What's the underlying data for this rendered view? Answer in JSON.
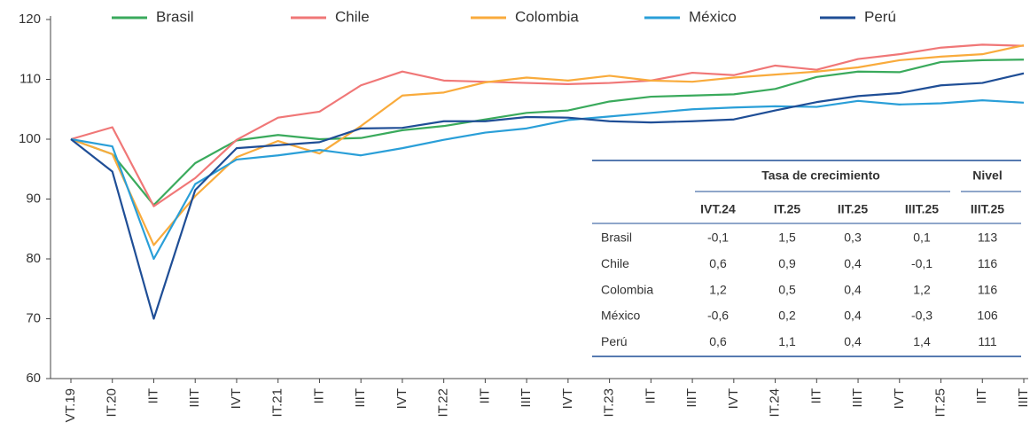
{
  "chart_data": {
    "type": "line",
    "categories": [
      "VT.19",
      "IT.20",
      "IIT",
      "IIIT",
      "IVT",
      "IT.21",
      "IIT",
      "IIIT",
      "IVT",
      "IT.22",
      "IIT",
      "IIIT",
      "IVT",
      "IT.23",
      "IIT",
      "IIIT",
      "IVT",
      "IT.24",
      "IIT",
      "IIIT",
      "IVT",
      "IT.25",
      "IIT",
      "IIIT"
    ],
    "series": [
      {
        "name": "Brasil",
        "color": "#3aaa5c",
        "values": [
          100,
          97.5,
          89,
          96,
          99.8,
          100.7,
          100,
          100.2,
          101.5,
          102.2,
          103.3,
          104.4,
          104.8,
          106.3,
          107.1,
          107.3,
          107.5,
          108.4,
          110.4,
          111.3,
          111.2,
          112.9,
          113.2,
          113.3
        ]
      },
      {
        "name": "Chile",
        "color": "#f07777",
        "values": [
          100,
          102,
          88.8,
          93.5,
          99.9,
          103.6,
          104.6,
          109,
          111.3,
          109.8,
          109.6,
          109.4,
          109.2,
          109.4,
          109.8,
          111.1,
          110.7,
          112.3,
          111.6,
          113.4,
          114.2,
          115.3,
          115.8,
          115.6
        ]
      },
      {
        "name": "Colombia",
        "color": "#f9ab3c",
        "values": [
          100,
          97.5,
          82.3,
          90.5,
          97,
          99.7,
          97.6,
          102.2,
          107.3,
          107.8,
          109.5,
          110.3,
          109.8,
          110.6,
          109.8,
          109.6,
          110.3,
          110.8,
          111.3,
          112,
          113.2,
          113.8,
          114.2,
          115.7
        ]
      },
      {
        "name": "México",
        "color": "#2a9fd8",
        "values": [
          100,
          98.8,
          80,
          92.5,
          96.6,
          97.3,
          98.2,
          97.3,
          98.5,
          99.9,
          101.1,
          101.8,
          103.2,
          103.8,
          104.4,
          105,
          105.3,
          105.5,
          105.4,
          106.4,
          105.8,
          106,
          106.5,
          106.1
        ]
      },
      {
        "name": "Perú",
        "color": "#1f4e96",
        "values": [
          100,
          94.6,
          70,
          91.5,
          98.5,
          99,
          99.5,
          101.8,
          101.9,
          103,
          103,
          103.7,
          103.6,
          103,
          102.8,
          103,
          103.3,
          104.8,
          106.2,
          107.2,
          107.7,
          109,
          109.4,
          111
        ]
      }
    ],
    "ylim": [
      60,
      120
    ],
    "yticks": [
      60,
      70,
      80,
      90,
      100,
      110,
      120
    ],
    "table": {
      "group_headers": [
        "Tasa de crecimiento",
        "Nivel"
      ],
      "columns": [
        "IVT.24",
        "IT.25",
        "IIT.25",
        "IIIT.25",
        "IIIT.25"
      ],
      "rows": [
        [
          "Brasil",
          "-0,1",
          "1,5",
          "0,3",
          "0,1",
          "113"
        ],
        [
          "Chile",
          "0,6",
          "0,9",
          "0,4",
          "-0,1",
          "116"
        ],
        [
          "Colombia",
          "1,2",
          "0,5",
          "0,4",
          "1,2",
          "116"
        ],
        [
          "México",
          "-0,6",
          "0,2",
          "0,4",
          "-0,3",
          "106"
        ],
        [
          "Perú",
          "0,6",
          "1,1",
          "0,4",
          "1,4",
          "111"
        ]
      ]
    }
  }
}
